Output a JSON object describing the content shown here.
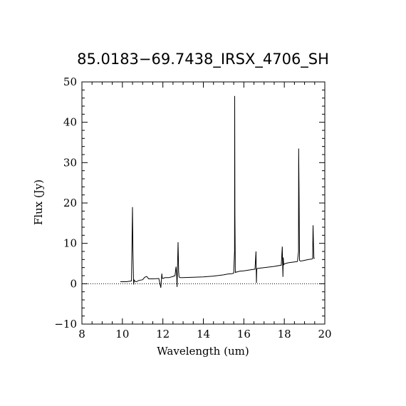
{
  "chart_data": {
    "type": "line",
    "title": "85.0183−69.7438_IRSX_4706_SH",
    "xlabel": "Wavelength (um)",
    "ylabel": "Flux (Jy)",
    "xlim": [
      8,
      20
    ],
    "ylim": [
      -10,
      50
    ],
    "x_ticks": [
      "8",
      "10",
      "12",
      "14",
      "16",
      "18",
      "20"
    ],
    "y_ticks": [
      "−10",
      "0",
      "10",
      "20",
      "30",
      "40",
      "50"
    ],
    "zero_line": true,
    "grid": false,
    "series": [
      {
        "x": [
          9.9,
          10.2,
          10.45,
          10.5,
          10.52,
          10.55,
          10.56,
          10.58,
          10.62,
          10.7,
          10.8,
          11.0,
          11.1,
          11.2,
          11.25,
          11.3,
          11.5,
          11.8,
          11.9,
          11.95,
          11.97,
          12.0,
          12.1,
          12.3,
          12.5,
          12.6,
          12.65,
          12.68,
          12.7,
          12.75,
          12.78,
          12.8,
          12.82,
          12.85,
          12.9,
          13.0,
          13.5,
          14.0,
          14.5,
          15.0,
          15.2,
          15.4,
          15.5,
          15.54,
          15.55,
          15.56,
          15.58,
          15.6,
          15.62,
          15.65,
          15.8,
          16.0,
          16.4,
          16.55,
          16.6,
          16.62,
          16.64,
          16.7,
          17.0,
          17.5,
          17.85,
          17.9,
          17.93,
          17.95,
          17.97,
          18.0,
          18.05,
          18.2,
          18.5,
          18.65,
          18.7,
          18.71,
          18.73,
          18.75,
          18.8,
          19.0,
          19.2,
          19.35,
          19.4,
          19.42,
          19.44,
          19.46,
          19.5
        ],
        "y": [
          0.5,
          0.5,
          0.7,
          19.0,
          8.5,
          0.8,
          -0.2,
          0.9,
          0.6,
          0.5,
          0.8,
          1.0,
          1.6,
          1.8,
          1.5,
          1.2,
          1.2,
          1.3,
          -1.0,
          2.5,
          1.4,
          1.3,
          1.5,
          1.5,
          1.8,
          2.0,
          4.2,
          2.2,
          -0.8,
          10.3,
          3.0,
          1.7,
          1.6,
          1.5,
          1.5,
          1.5,
          1.6,
          1.7,
          1.9,
          2.2,
          2.4,
          2.5,
          2.6,
          8.0,
          46.5,
          17.5,
          2.8,
          2.8,
          2.9,
          2.9,
          3.1,
          3.2,
          3.5,
          3.6,
          8.0,
          0.2,
          3.7,
          3.8,
          4.0,
          4.3,
          4.6,
          9.2,
          1.7,
          6.5,
          4.7,
          4.9,
          5.0,
          5.2,
          5.4,
          5.5,
          8.0,
          33.5,
          22.0,
          5.8,
          5.6,
          5.8,
          6.0,
          6.1,
          6.2,
          14.5,
          10.0,
          6.3,
          6.3
        ]
      }
    ]
  }
}
